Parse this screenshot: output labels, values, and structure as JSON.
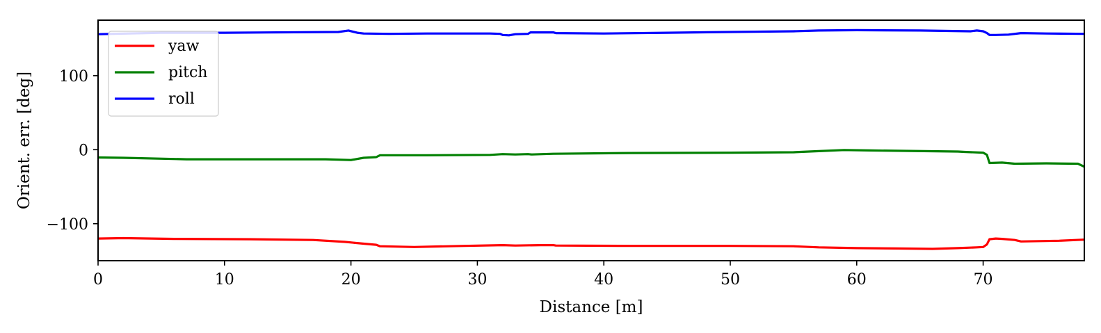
{
  "chart_data": {
    "type": "line",
    "title": "",
    "xlabel": "Distance [m]",
    "ylabel": "Orient. err. [deg]",
    "xlim": [
      0,
      78
    ],
    "ylim": [
      -150,
      175
    ],
    "xticks": [
      0,
      10,
      20,
      30,
      40,
      50,
      60,
      70
    ],
    "xtick_labels": [
      "0",
      "10",
      "20",
      "30",
      "40",
      "50",
      "60",
      "70"
    ],
    "yticks": [
      -100,
      0,
      100
    ],
    "ytick_labels": [
      "−100",
      "0",
      "100"
    ],
    "grid": false,
    "legend_position": "top-left",
    "series": [
      {
        "name": "yaw",
        "color": "#ff0000",
        "points": [
          [
            0,
            -120
          ],
          [
            2,
            -119.5
          ],
          [
            6,
            -120.5
          ],
          [
            12,
            -121
          ],
          [
            17,
            -122
          ],
          [
            19.5,
            -124.5
          ],
          [
            21,
            -127
          ],
          [
            22,
            -128.5
          ],
          [
            22.3,
            -130.5
          ],
          [
            25,
            -131.5
          ],
          [
            29,
            -130
          ],
          [
            32,
            -129
          ],
          [
            33,
            -129.5
          ],
          [
            35,
            -129
          ],
          [
            36,
            -129
          ],
          [
            36.2,
            -129.5
          ],
          [
            42,
            -130
          ],
          [
            50,
            -130
          ],
          [
            55,
            -130.5
          ],
          [
            57,
            -132
          ],
          [
            60,
            -133
          ],
          [
            63,
            -133.5
          ],
          [
            66,
            -134
          ],
          [
            68,
            -133
          ],
          [
            69.5,
            -132
          ],
          [
            70,
            -131.5
          ],
          [
            70.3,
            -128
          ],
          [
            70.5,
            -121
          ],
          [
            71,
            -120
          ],
          [
            71.5,
            -120.5
          ],
          [
            72.5,
            -122
          ],
          [
            73,
            -124
          ],
          [
            76,
            -123
          ],
          [
            78,
            -121.5
          ]
        ]
      },
      {
        "name": "pitch",
        "color": "#008000",
        "points": [
          [
            0,
            -10.5
          ],
          [
            2,
            -11
          ],
          [
            7,
            -13
          ],
          [
            12,
            -13
          ],
          [
            18,
            -13
          ],
          [
            20,
            -14
          ],
          [
            21,
            -11
          ],
          [
            22,
            -10
          ],
          [
            22.3,
            -7.5
          ],
          [
            26,
            -7.5
          ],
          [
            31,
            -7
          ],
          [
            32,
            -6
          ],
          [
            33,
            -6.5
          ],
          [
            34,
            -6
          ],
          [
            34.3,
            -6.5
          ],
          [
            36,
            -5.5
          ],
          [
            42,
            -4.5
          ],
          [
            50,
            -4
          ],
          [
            55,
            -3.5
          ],
          [
            57,
            -2
          ],
          [
            59,
            -0.5
          ],
          [
            61,
            -1
          ],
          [
            68,
            -2.5
          ],
          [
            68.5,
            -3
          ],
          [
            70,
            -4
          ],
          [
            70.3,
            -7
          ],
          [
            70.5,
            -18
          ],
          [
            71.5,
            -17.5
          ],
          [
            72.5,
            -19
          ],
          [
            75,
            -18.5
          ],
          [
            77.5,
            -19
          ],
          [
            78,
            -23
          ]
        ]
      },
      {
        "name": "roll",
        "color": "#0000ff",
        "points": [
          [
            0,
            156
          ],
          [
            5,
            158
          ],
          [
            10,
            158
          ],
          [
            19,
            159
          ],
          [
            19.8,
            161
          ],
          [
            20.5,
            158
          ],
          [
            21,
            157
          ],
          [
            23,
            156.5
          ],
          [
            26,
            157
          ],
          [
            31,
            157
          ],
          [
            31.8,
            156.5
          ],
          [
            32,
            155
          ],
          [
            32.5,
            154.5
          ],
          [
            33,
            156
          ],
          [
            34,
            156.5
          ],
          [
            34.2,
            158.5
          ],
          [
            36,
            158.5
          ],
          [
            36.2,
            157.5
          ],
          [
            40,
            157
          ],
          [
            45,
            158
          ],
          [
            50,
            159
          ],
          [
            55,
            160
          ],
          [
            57,
            161
          ],
          [
            60,
            161.5
          ],
          [
            65,
            161
          ],
          [
            69,
            160
          ],
          [
            69.5,
            161
          ],
          [
            70,
            160
          ],
          [
            70.3,
            157.5
          ],
          [
            70.5,
            155
          ],
          [
            71,
            155
          ],
          [
            72,
            155.5
          ],
          [
            73,
            157.5
          ],
          [
            75,
            157
          ],
          [
            78,
            156.5
          ]
        ]
      }
    ]
  }
}
